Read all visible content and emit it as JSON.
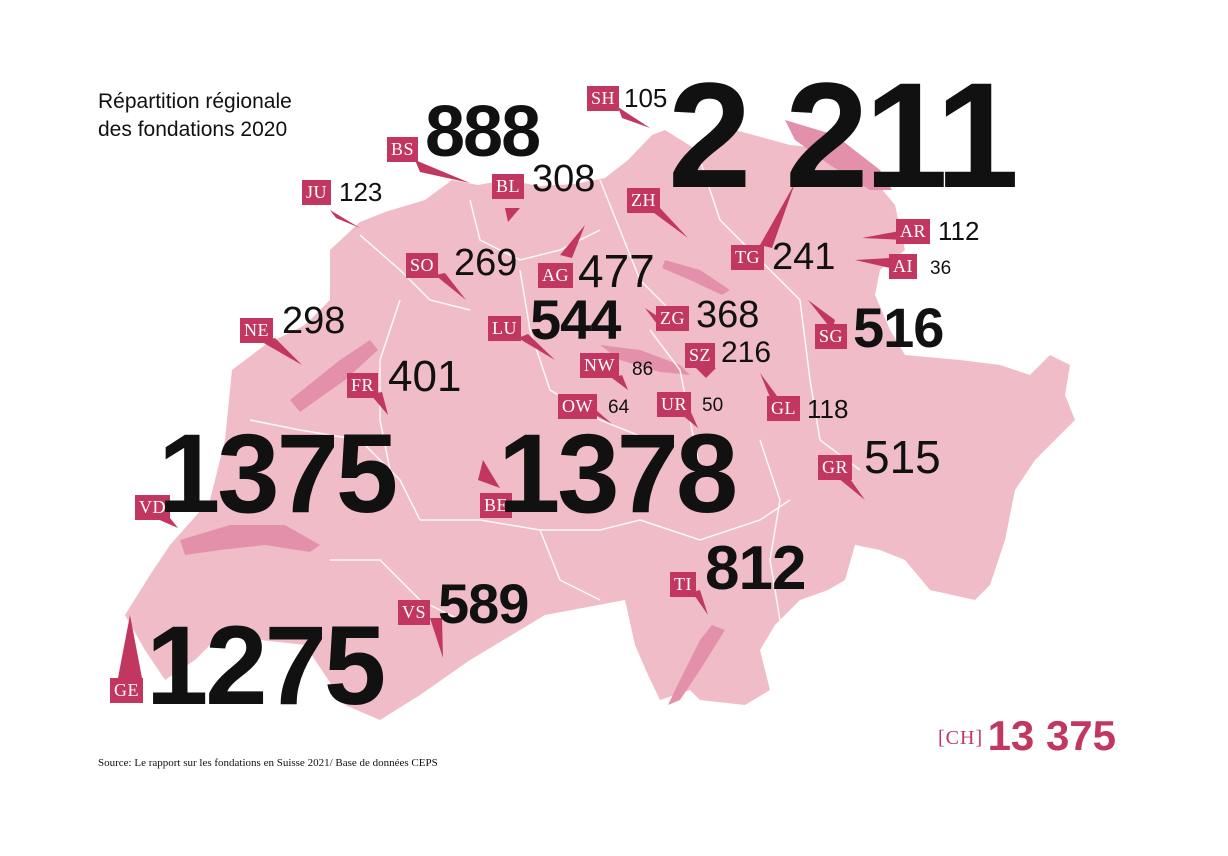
{
  "title": {
    "line1": "Répartition régionale",
    "line2": "des fondations 2020"
  },
  "source": "Source: Le rapport sur les fondations en Suisse 2021/ Base de données CEPS",
  "total": {
    "code": "[CH]",
    "value": "13 375"
  },
  "colors": {
    "map_fill": "#f0bcc8",
    "accent": "#c1375f",
    "lake": "#e391aa",
    "border": "#ffffff"
  },
  "cantons": {
    "sh": {
      "code": "SH",
      "value": "105"
    },
    "zh": {
      "code": "ZH",
      "value": "2 211"
    },
    "bs": {
      "code": "BS",
      "value": "888"
    },
    "bl": {
      "code": "BL",
      "value": "308"
    },
    "ju": {
      "code": "JU",
      "value": "123"
    },
    "ar": {
      "code": "AR",
      "value": "112"
    },
    "ai": {
      "code": "AI",
      "value": "36"
    },
    "tg": {
      "code": "TG",
      "value": "241"
    },
    "so": {
      "code": "SO",
      "value": "269"
    },
    "ag": {
      "code": "AG",
      "value": "477"
    },
    "ne": {
      "code": "NE",
      "value": "298"
    },
    "lu": {
      "code": "LU",
      "value": "544"
    },
    "zg": {
      "code": "ZG",
      "value": "368"
    },
    "sg": {
      "code": "SG",
      "value": "516"
    },
    "nw": {
      "code": "NW",
      "value": "86"
    },
    "sz": {
      "code": "SZ",
      "value": "216"
    },
    "fr": {
      "code": "FR",
      "value": "401"
    },
    "ow": {
      "code": "OW",
      "value": "64"
    },
    "ur": {
      "code": "UR",
      "value": "50"
    },
    "gl": {
      "code": "GL",
      "value": "118"
    },
    "vd": {
      "code": "VD",
      "value": "1375"
    },
    "be": {
      "code": "BE",
      "value": "1378"
    },
    "gr": {
      "code": "GR",
      "value": "515"
    },
    "ti": {
      "code": "TI",
      "value": "812"
    },
    "vs": {
      "code": "VS",
      "value": "589"
    },
    "ge": {
      "code": "GE",
      "value": "1275"
    }
  }
}
